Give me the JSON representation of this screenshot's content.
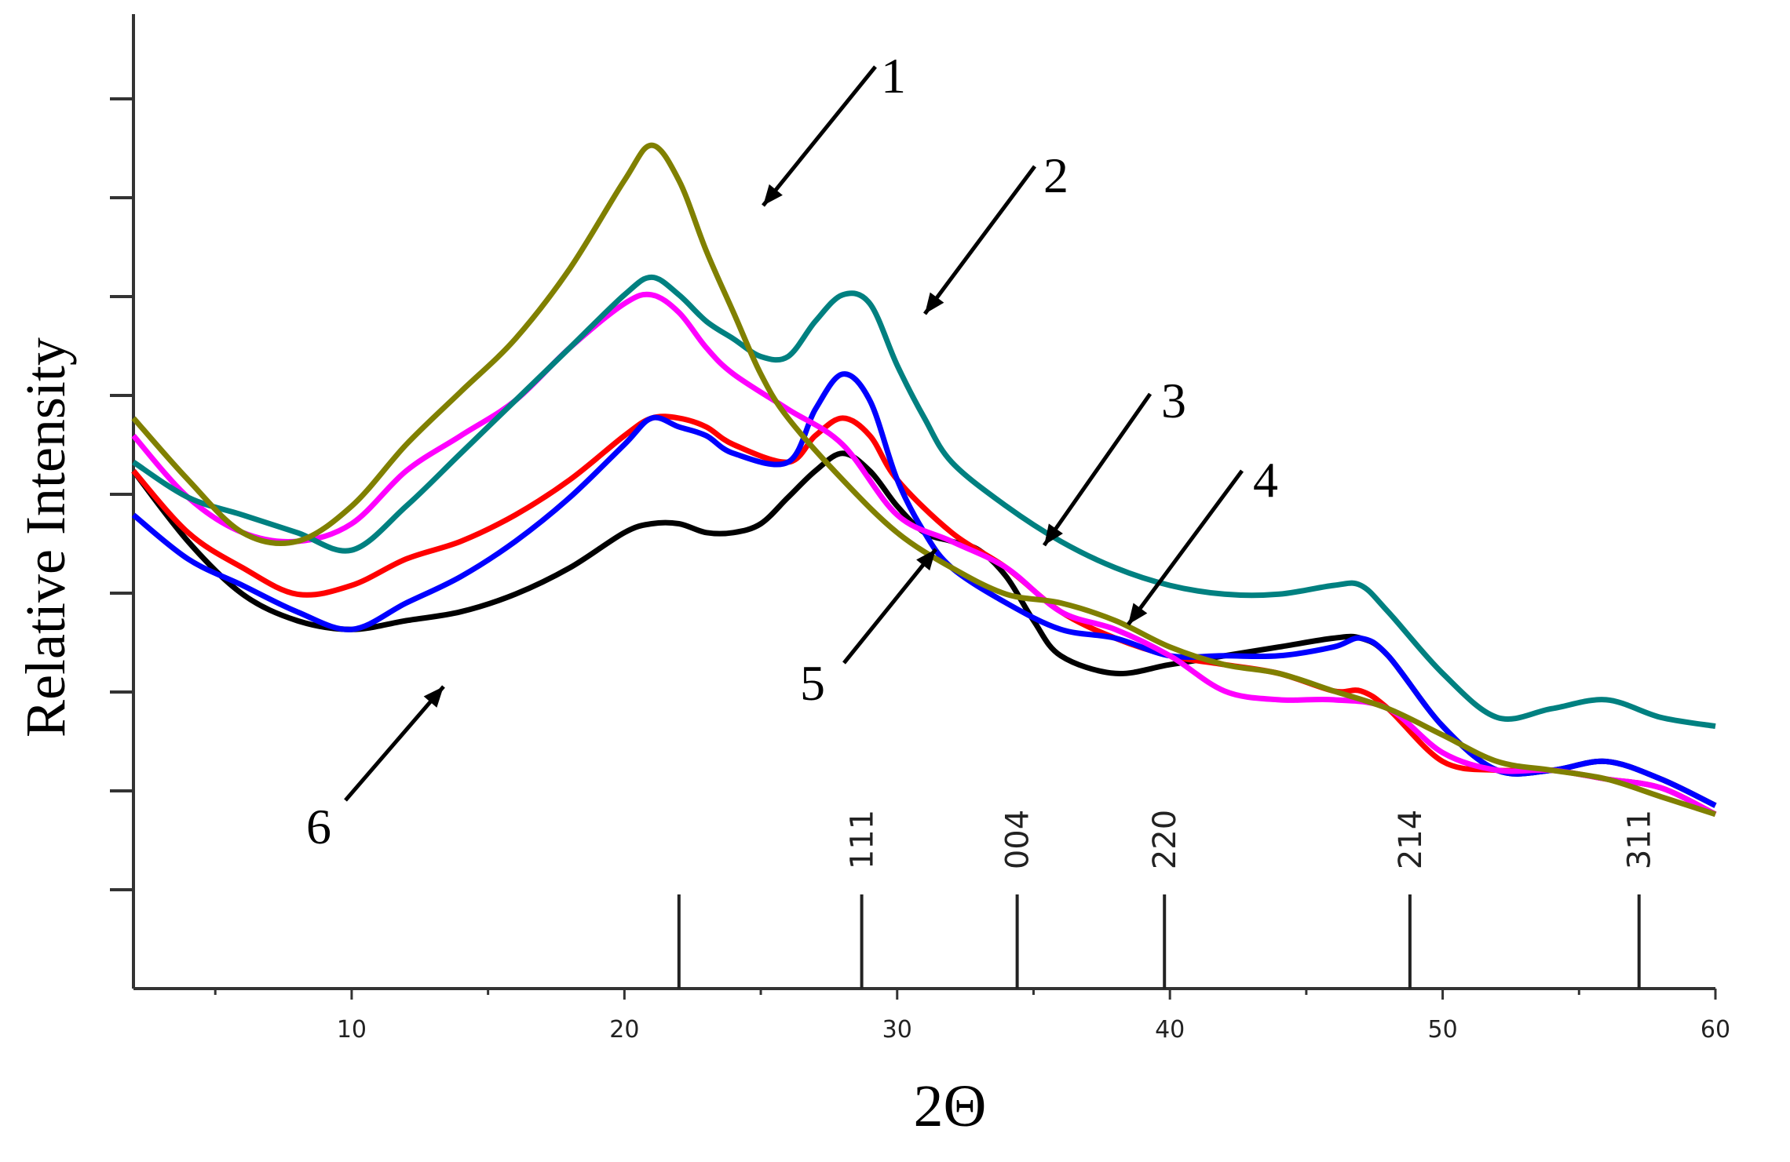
{
  "chart_data": {
    "type": "line",
    "title": "",
    "xlabel": "2Θ",
    "ylabel": "Relative Intensity",
    "xlim": [
      2,
      60
    ],
    "ylim": [
      0,
      100
    ],
    "x_ticks": [
      10,
      20,
      30,
      40,
      50,
      60
    ],
    "y_tick_labels_shown": false,
    "grid": false,
    "legend": "none",
    "series": [
      {
        "name": "1",
        "color": "#808000",
        "x": [
          2,
          4,
          6,
          8,
          10,
          12,
          14,
          16,
          18,
          20,
          21,
          22,
          23,
          24,
          25,
          26,
          28,
          30,
          32,
          34,
          36,
          38,
          40,
          42,
          44,
          46,
          48,
          50,
          52,
          54,
          56,
          58,
          60
        ],
        "y": [
          55,
          48,
          42,
          41,
          45,
          52,
          58,
          64,
          72,
          82,
          86,
          82,
          74,
          67,
          60,
          55,
          48,
          42,
          38,
          35,
          34,
          32,
          29,
          27,
          26,
          24,
          22,
          19,
          16,
          15,
          14,
          12,
          10
        ]
      },
      {
        "name": "2",
        "color": "#008080",
        "x": [
          2,
          4,
          6,
          8,
          10,
          12,
          14,
          16,
          18,
          20,
          21,
          22,
          23,
          24,
          25,
          26,
          27,
          28,
          29,
          30,
          31,
          32,
          34,
          36,
          38,
          40,
          42,
          44,
          46,
          47,
          48,
          50,
          52,
          54,
          56,
          58,
          60
        ],
        "y": [
          50,
          46,
          44,
          42,
          40,
          45,
          51,
          57,
          63,
          69,
          71,
          69,
          66,
          64,
          62,
          62,
          66,
          69,
          68,
          61,
          55,
          50,
          45,
          41,
          38,
          36,
          35,
          35,
          36,
          36,
          33,
          26,
          21,
          22,
          23,
          21,
          20
        ]
      },
      {
        "name": "3",
        "color": "#ff00ff",
        "x": [
          2,
          4,
          6,
          8,
          10,
          12,
          14,
          16,
          18,
          20,
          21,
          22,
          23,
          24,
          26,
          28,
          30,
          32,
          34,
          36,
          38,
          40,
          42,
          44,
          46,
          48,
          50,
          52,
          54,
          56,
          58,
          60
        ],
        "y": [
          53,
          46,
          42,
          41,
          43,
          49,
          53,
          57,
          63,
          68,
          69,
          67,
          63,
          60,
          56,
          52,
          44,
          41,
          38,
          33,
          31,
          28,
          24,
          23,
          23,
          22,
          17,
          15,
          15,
          14,
          13,
          10
        ]
      },
      {
        "name": "4",
        "color": "#ff0000",
        "x": [
          2,
          4,
          6,
          8,
          10,
          12,
          14,
          16,
          18,
          20,
          21,
          22,
          23,
          24,
          26,
          27,
          28,
          29,
          30,
          32,
          34,
          36,
          38,
          40,
          42,
          44,
          46,
          47,
          48,
          50,
          52,
          54,
          56,
          58,
          60
        ],
        "y": [
          49,
          42,
          38,
          35,
          36,
          39,
          41,
          44,
          48,
          53,
          55,
          55,
          54,
          52,
          50,
          53,
          55,
          53,
          48,
          42,
          38,
          33,
          30,
          28,
          27,
          26,
          24,
          24,
          22,
          16,
          15,
          15,
          14,
          13,
          10
        ]
      },
      {
        "name": "5",
        "color": "#0000ff",
        "x": [
          2,
          4,
          6,
          8,
          10,
          12,
          14,
          16,
          18,
          20,
          21,
          22,
          23,
          24,
          26,
          27,
          28,
          29,
          30,
          31,
          32,
          34,
          36,
          38,
          40,
          42,
          44,
          46,
          47,
          48,
          50,
          52,
          54,
          56,
          58,
          60
        ],
        "y": [
          44,
          39,
          36,
          33,
          31,
          34,
          37,
          41,
          46,
          52,
          55,
          54,
          53,
          51,
          50,
          56,
          60,
          57,
          48,
          42,
          38,
          34,
          31,
          30,
          28,
          28,
          28,
          29,
          30,
          28,
          20,
          15,
          15,
          16,
          14,
          11
        ]
      },
      {
        "name": "6",
        "color": "#000000",
        "x": [
          2,
          4,
          6,
          8,
          10,
          12,
          14,
          16,
          18,
          20,
          21,
          22,
          23,
          24,
          25,
          26,
          27,
          28,
          29,
          30,
          31,
          32,
          33,
          34,
          35,
          36,
          38,
          40,
          42,
          44,
          46,
          47,
          48,
          50,
          52,
          54,
          56,
          58,
          60
        ],
        "y": [
          49,
          41,
          35,
          32,
          31,
          32,
          33,
          35,
          38,
          42,
          43,
          43,
          42,
          42,
          43,
          46,
          49,
          51,
          49,
          45,
          42,
          41,
          40,
          37,
          32,
          28,
          26,
          27,
          28,
          29,
          30,
          30,
          28,
          20,
          15,
          15,
          16,
          14,
          11
        ]
      }
    ],
    "callouts": [
      {
        "label": "1",
        "series": "1"
      },
      {
        "label": "2",
        "series": "2"
      },
      {
        "label": "3",
        "series": "3"
      },
      {
        "label": "4",
        "series": "4"
      },
      {
        "label": "5",
        "series": "5"
      },
      {
        "label": "6",
        "series": "6"
      }
    ],
    "reflections": [
      {
        "x": 22,
        "label": ""
      },
      {
        "x": 28.7,
        "label": "111"
      },
      {
        "x": 34.4,
        "label": "004"
      },
      {
        "x": 39.8,
        "label": "220"
      },
      {
        "x": 48.8,
        "label": "214"
      },
      {
        "x": 57.2,
        "label": "311"
      }
    ]
  }
}
